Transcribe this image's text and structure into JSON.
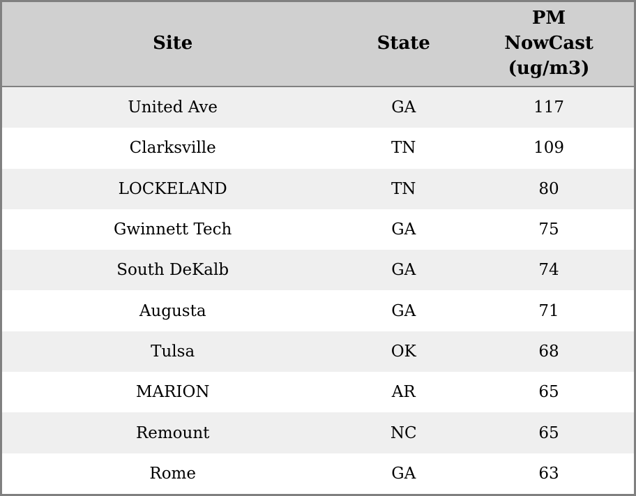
{
  "table": {
    "columns": [
      {
        "label": "Site"
      },
      {
        "label": "State"
      },
      {
        "label": "PM\nNowCast\n(ug/m3)"
      }
    ],
    "rows": [
      {
        "site": "United Ave",
        "state": "GA",
        "pm_nowcast": 117
      },
      {
        "site": "Clarksville",
        "state": "TN",
        "pm_nowcast": 109
      },
      {
        "site": "LOCKELAND",
        "state": "TN",
        "pm_nowcast": 80
      },
      {
        "site": "Gwinnett Tech",
        "state": "GA",
        "pm_nowcast": 75
      },
      {
        "site": "South DeKalb",
        "state": "GA",
        "pm_nowcast": 74
      },
      {
        "site": "Augusta",
        "state": "GA",
        "pm_nowcast": 71
      },
      {
        "site": "Tulsa",
        "state": "OK",
        "pm_nowcast": 68
      },
      {
        "site": "MARION",
        "state": "AR",
        "pm_nowcast": 65
      },
      {
        "site": "Remount",
        "state": "NC",
        "pm_nowcast": 65
      },
      {
        "site": "Rome",
        "state": "GA",
        "pm_nowcast": 63
      }
    ]
  },
  "chart_data": {
    "type": "table",
    "title": "",
    "columns": [
      "Site",
      "State",
      "PM NowCast (ug/m3)"
    ],
    "rows": [
      [
        "United Ave",
        "GA",
        117
      ],
      [
        "Clarksville",
        "TN",
        109
      ],
      [
        "LOCKELAND",
        "TN",
        80
      ],
      [
        "Gwinnett Tech",
        "GA",
        75
      ],
      [
        "South DeKalb",
        "GA",
        74
      ],
      [
        "Augusta",
        "GA",
        71
      ],
      [
        "Tulsa",
        "OK",
        68
      ],
      [
        "MARION",
        "AR",
        65
      ],
      [
        "Remount",
        "NC",
        65
      ],
      [
        "Rome",
        "GA",
        63
      ]
    ],
    "layout": {
      "header_background": "#d0d0d0",
      "row_alt_background": "#efefef",
      "row_background": "#ffffff",
      "border_color": "#808080",
      "text_color": "#000000",
      "alignment": "center"
    }
  }
}
